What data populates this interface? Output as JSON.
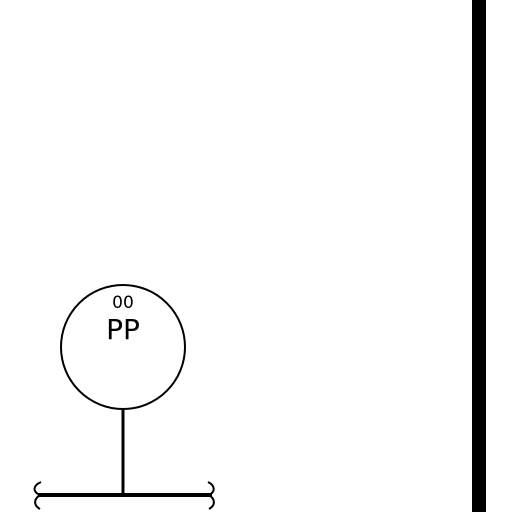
{
  "diagram": {
    "symbol": {
      "kind": "circle-on-stem",
      "label_top": "00",
      "label_main": "PP"
    },
    "base_line": {
      "ends": "break-marks"
    },
    "side_bar": {
      "kind": "thick-vertical-line"
    },
    "colors": {
      "stroke": "#000000",
      "background": "#ffffff"
    }
  }
}
